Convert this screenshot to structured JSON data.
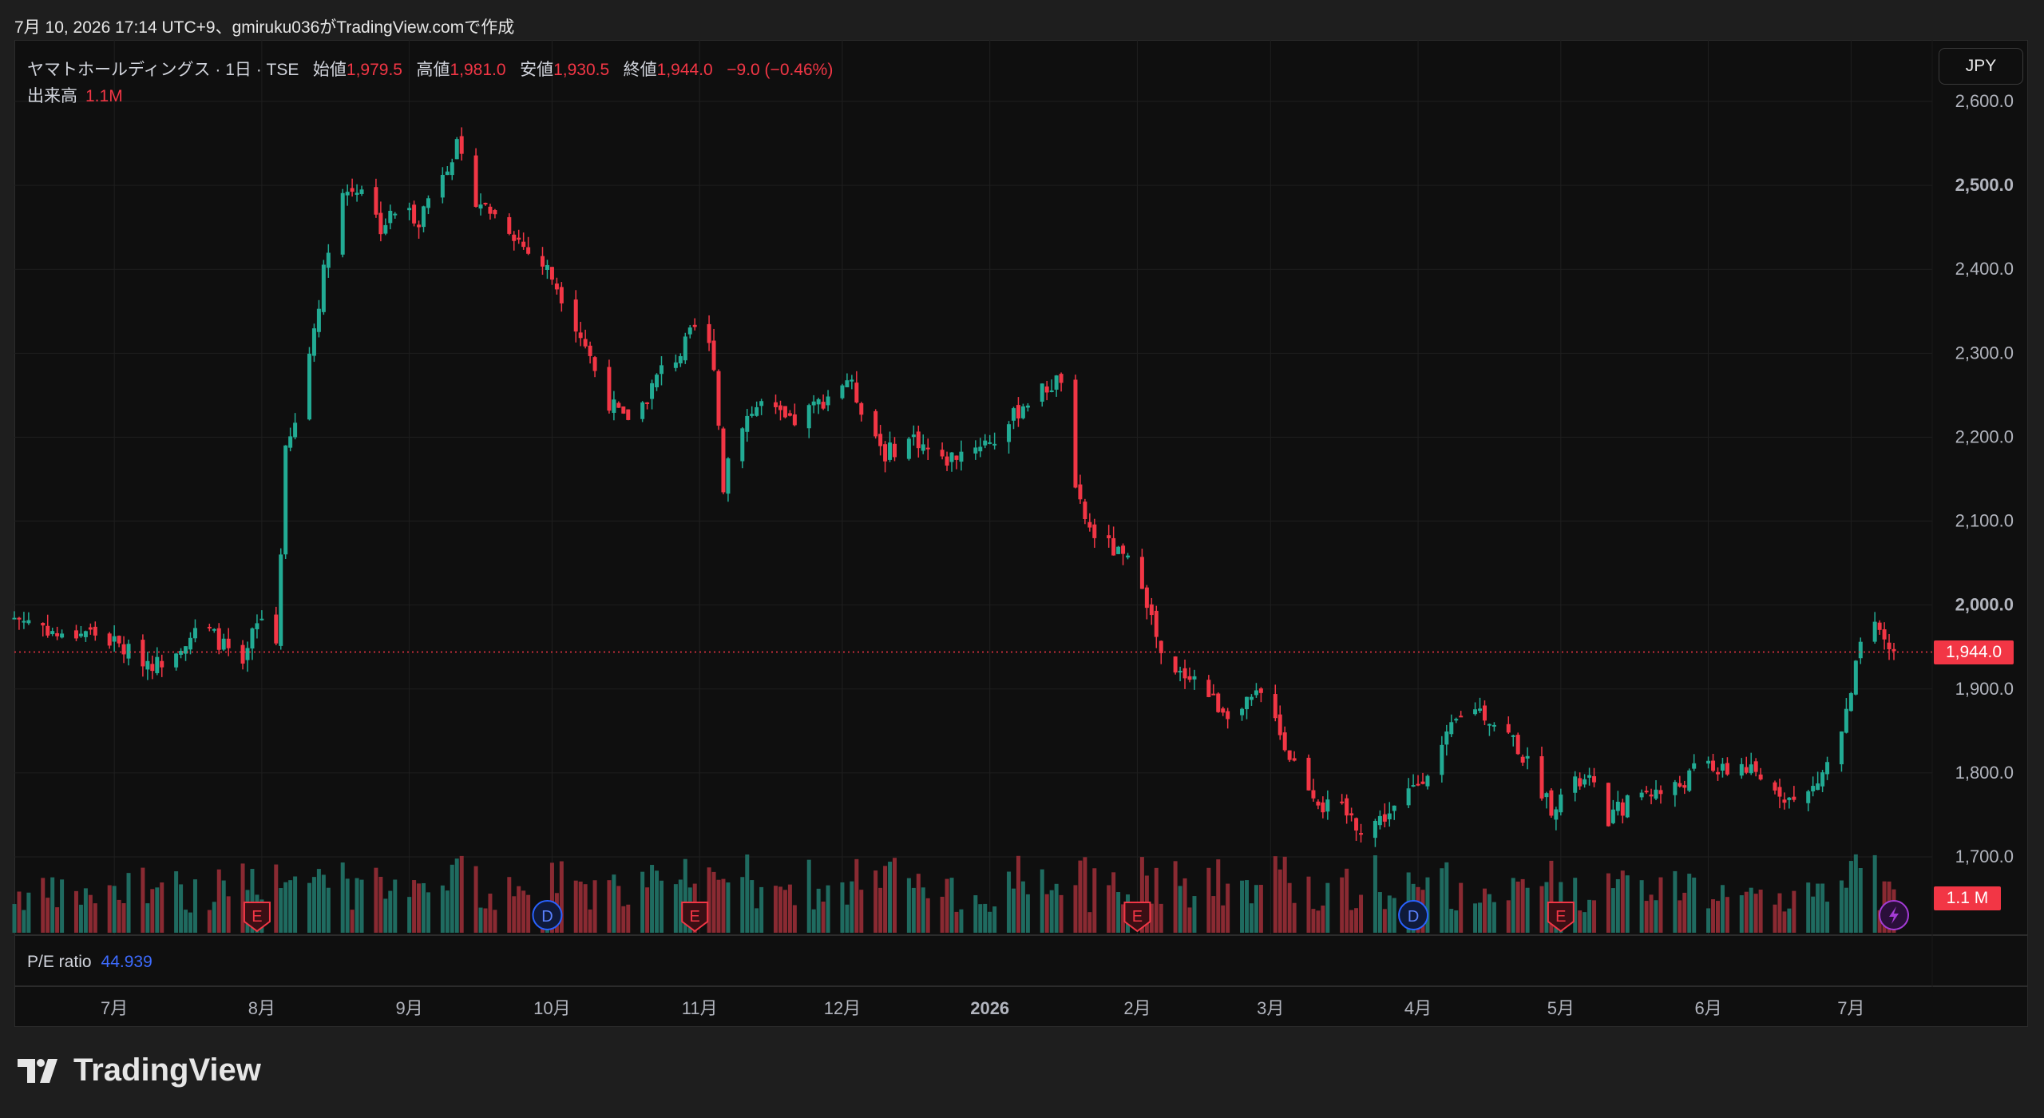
{
  "caption": "7月 10, 2026 17:14 UTC+9、gmiruku036がTradingView.comで作成",
  "legend": {
    "symbol": "ヤマトホールディングス · 1日 · TSE",
    "open_label": "始値",
    "open": "1,979.5",
    "high_label": "高値",
    "high": "1,981.0",
    "low_label": "安値",
    "low": "1,930.5",
    "close_label": "終値",
    "close": "1,944.0",
    "change": "−9.0 (−0.46%)"
  },
  "volume_legend": {
    "label": "出来高",
    "value": "1.1M"
  },
  "currency_button": "JPY",
  "pe": {
    "label": "P/E ratio",
    "value": "44.939"
  },
  "last_price_tag": "1,944.0",
  "volume_tag": "1.1 M",
  "brand": "TradingView",
  "colors": {
    "up": "#22ab94",
    "down": "#f23645",
    "background": "#0f0f0f",
    "grid": "#1f1f1f"
  },
  "chart_data": {
    "type": "candlestick",
    "currency": "JPY",
    "ylim": [
      1650,
      2620
    ],
    "y_ticks": [
      "2,600.0",
      "2,500.0",
      "2,400.0",
      "2,300.0",
      "2,200.0",
      "2,100.0",
      "2,000.0",
      "1,900.0",
      "1,800.0",
      "1,700.0"
    ],
    "y_tick_values": [
      2600,
      2500,
      2400,
      2300,
      2200,
      2100,
      2000,
      1900,
      1800,
      1700
    ],
    "x_ticks": [
      "7月",
      "8月",
      "9月",
      "10月",
      "11月",
      "12月",
      "2026",
      "2月",
      "3月",
      "4月",
      "5月",
      "6月",
      "7月"
    ],
    "x_tick_dates": [
      "2025-07-01",
      "2025-08-01",
      "2025-09-01",
      "2025-10-01",
      "2025-11-01",
      "2025-12-01",
      "2026-01-01",
      "2026-02-01",
      "2026-03-01",
      "2026-04-01",
      "2026-05-01",
      "2026-06-01",
      "2026-07-01"
    ],
    "last_price": 1944.0,
    "close_series": [
      [
        "2025-06-10",
        1985
      ],
      [
        "2025-06-15",
        1980
      ],
      [
        "2025-06-20",
        1960
      ],
      [
        "2025-06-25",
        1970
      ],
      [
        "2025-07-01",
        1955
      ],
      [
        "2025-07-05",
        1940
      ],
      [
        "2025-07-10",
        1930
      ],
      [
        "2025-07-15",
        1955
      ],
      [
        "2025-07-20",
        1975
      ],
      [
        "2025-07-25",
        1945
      ],
      [
        "2025-07-28",
        1920
      ],
      [
        "2025-07-30",
        1965
      ],
      [
        "2025-08-01",
        1985
      ],
      [
        "2025-08-04",
        1955
      ],
      [
        "2025-08-06",
        2180
      ],
      [
        "2025-08-08",
        2215
      ],
      [
        "2025-08-12",
        2330
      ],
      [
        "2025-08-15",
        2430
      ],
      [
        "2025-08-18",
        2490
      ],
      [
        "2025-08-22",
        2500
      ],
      [
        "2025-08-26",
        2450
      ],
      [
        "2025-08-30",
        2475
      ],
      [
        "2025-09-03",
        2460
      ],
      [
        "2025-09-07",
        2510
      ],
      [
        "2025-09-11",
        2545
      ],
      [
        "2025-09-14",
        2490
      ],
      [
        "2025-09-18",
        2470
      ],
      [
        "2025-09-22",
        2450
      ],
      [
        "2025-09-26",
        2420
      ],
      [
        "2025-09-30",
        2400
      ],
      [
        "2025-10-04",
        2360
      ],
      [
        "2025-10-08",
        2310
      ],
      [
        "2025-10-12",
        2250
      ],
      [
        "2025-10-16",
        2220
      ],
      [
        "2025-10-20",
        2240
      ],
      [
        "2025-10-24",
        2280
      ],
      [
        "2025-10-28",
        2300
      ],
      [
        "2025-11-01",
        2340
      ],
      [
        "2025-11-04",
        2290
      ],
      [
        "2025-11-06",
        2140
      ],
      [
        "2025-11-08",
        2210
      ],
      [
        "2025-11-14",
        2240
      ],
      [
        "2025-11-20",
        2215
      ],
      [
        "2025-11-26",
        2240
      ],
      [
        "2025-12-02",
        2270
      ],
      [
        "2025-12-06",
        2225
      ],
      [
        "2025-12-10",
        2180
      ],
      [
        "2025-12-16",
        2200
      ],
      [
        "2025-12-22",
        2170
      ],
      [
        "2025-12-28",
        2190
      ],
      [
        "2026-01-03",
        2200
      ],
      [
        "2026-01-08",
        2240
      ],
      [
        "2026-01-12",
        2255
      ],
      [
        "2026-01-16",
        2270
      ],
      [
        "2026-01-19",
        2130
      ],
      [
        "2026-01-22",
        2090
      ],
      [
        "2026-01-26",
        2070
      ],
      [
        "2026-01-30",
        2050
      ],
      [
        "2026-02-02",
        2030
      ],
      [
        "2026-02-05",
        1960
      ],
      [
        "2026-02-07",
        1910
      ],
      [
        "2026-02-12",
        1920
      ],
      [
        "2026-02-18",
        1880
      ],
      [
        "2026-02-22",
        1870
      ],
      [
        "2026-02-26",
        1890
      ],
      [
        "2026-03-01",
        1895
      ],
      [
        "2026-03-04",
        1830
      ],
      [
        "2026-03-08",
        1795
      ],
      [
        "2026-03-12",
        1760
      ],
      [
        "2026-03-16",
        1755
      ],
      [
        "2026-03-20",
        1735
      ],
      [
        "2026-03-24",
        1745
      ],
      [
        "2026-03-28",
        1760
      ],
      [
        "2026-04-01",
        1790
      ],
      [
        "2026-04-05",
        1820
      ],
      [
        "2026-04-09",
        1860
      ],
      [
        "2026-04-13",
        1880
      ],
      [
        "2026-04-17",
        1860
      ],
      [
        "2026-04-21",
        1840
      ],
      [
        "2026-04-25",
        1800
      ],
      [
        "2026-04-29",
        1760
      ],
      [
        "2026-05-03",
        1785
      ],
      [
        "2026-05-07",
        1790
      ],
      [
        "2026-05-11",
        1745
      ],
      [
        "2026-05-15",
        1765
      ],
      [
        "2026-05-19",
        1780
      ],
      [
        "2026-05-23",
        1775
      ],
      [
        "2026-05-27",
        1790
      ],
      [
        "2026-05-31",
        1815
      ],
      [
        "2026-06-04",
        1800
      ],
      [
        "2026-06-08",
        1810
      ],
      [
        "2026-06-12",
        1790
      ],
      [
        "2026-06-16",
        1780
      ],
      [
        "2026-06-20",
        1760
      ],
      [
        "2026-06-24",
        1790
      ],
      [
        "2026-06-28",
        1830
      ],
      [
        "2026-07-01",
        1890
      ],
      [
        "2026-07-04",
        1990
      ],
      [
        "2026-07-07",
        1960
      ],
      [
        "2026-07-10",
        1944
      ]
    ],
    "events": [
      {
        "date": "2025-07-31",
        "type": "E"
      },
      {
        "date": "2025-09-30",
        "type": "D"
      },
      {
        "date": "2025-10-31",
        "type": "E"
      },
      {
        "date": "2026-02-01",
        "type": "E"
      },
      {
        "date": "2026-03-31",
        "type": "D"
      },
      {
        "date": "2026-05-01",
        "type": "E"
      },
      {
        "date": "2026-07-10",
        "type": "bolt"
      }
    ]
  }
}
